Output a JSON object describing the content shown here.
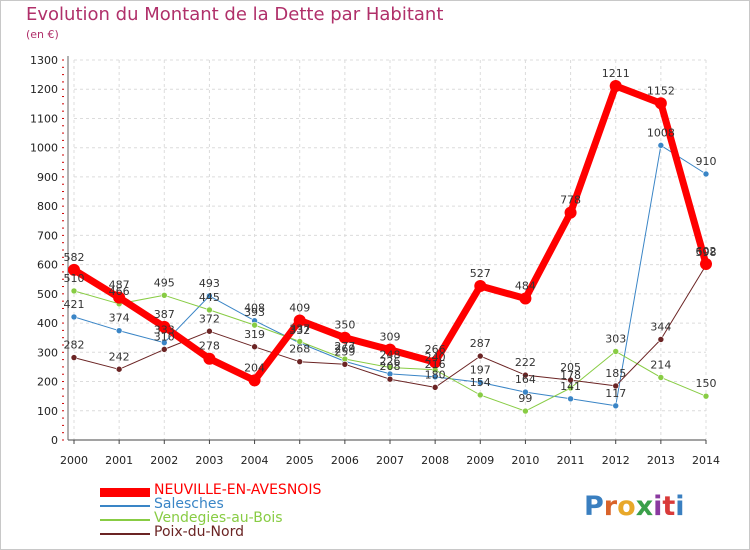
{
  "title": "Evolution du Montant de la Dette par Habitant",
  "subtitle": "(en €)",
  "logo": {
    "text": "Proxiti",
    "colors": [
      "#3a7fc0",
      "#d9632a",
      "#e8a82a",
      "#3aa04a",
      "#8a3aa0",
      "#d93a3a",
      "#3a7fc0"
    ]
  },
  "chart_data": {
    "type": "line",
    "x": [
      "2000",
      "2001",
      "2002",
      "2003",
      "2004",
      "2005",
      "2006",
      "2007",
      "2008",
      "2009",
      "2010",
      "2011",
      "2012",
      "2013",
      "2014"
    ],
    "ylim": [
      0,
      1300
    ],
    "yticks": [
      "0",
      "100",
      "200",
      "300",
      "400",
      "500",
      "600",
      "700",
      "800",
      "900",
      "1000",
      "1100",
      "1200",
      "1300"
    ],
    "grid": true,
    "legend_position": "bottom-left",
    "series": [
      {
        "name": "NEUVILLE-EN-AVESNOIS",
        "color": "#ff0000",
        "width": 7,
        "marker": 6,
        "values": [
          582,
          487,
          387,
          278,
          204,
          409,
          350,
          309,
          266,
          527,
          484,
          778,
          1211,
          1152,
          602
        ],
        "labels": [
          "582",
          "487",
          "387",
          "278",
          "204",
          "409",
          "350",
          "309",
          "266",
          "527",
          "484",
          "778",
          "1211",
          "1152",
          "602"
        ]
      },
      {
        "name": "Salesches",
        "color": "#3a85c6",
        "width": 1,
        "marker": 3,
        "values": [
          421,
          374,
          333,
          493,
          408,
          332,
          269,
          226,
          216,
          197,
          164,
          141,
          117,
          1008,
          910
        ],
        "labels": [
          "421",
          "374",
          "333",
          "493",
          "408",
          "332",
          "269",
          "226",
          "216",
          "197",
          "164",
          "141",
          "117",
          "1008",
          "910"
        ]
      },
      {
        "name": "Vendegies-au-Bois",
        "color": "#88cc44",
        "width": 1,
        "marker": 3,
        "values": [
          510,
          466,
          495,
          445,
          393,
          337,
          277,
          248,
          240,
          154,
          99,
          178,
          303,
          214,
          150
        ],
        "labels": [
          "510",
          "466",
          "495",
          "445",
          "393",
          "337",
          "277",
          "248",
          "240",
          "154",
          "99",
          "178",
          "303",
          "214",
          "150"
        ]
      },
      {
        "name": "Poix-du-Nord",
        "color": "#6b2424",
        "width": 1,
        "marker": 3,
        "values": [
          282,
          242,
          310,
          372,
          319,
          268,
          259,
          208,
          180,
          287,
          222,
          205,
          185,
          344,
          598
        ],
        "labels": [
          "282",
          "242",
          "310",
          "372",
          "319",
          "268",
          "259",
          "208",
          "180",
          "287",
          "222",
          "205",
          "185",
          "344",
          "598"
        ]
      }
    ]
  }
}
